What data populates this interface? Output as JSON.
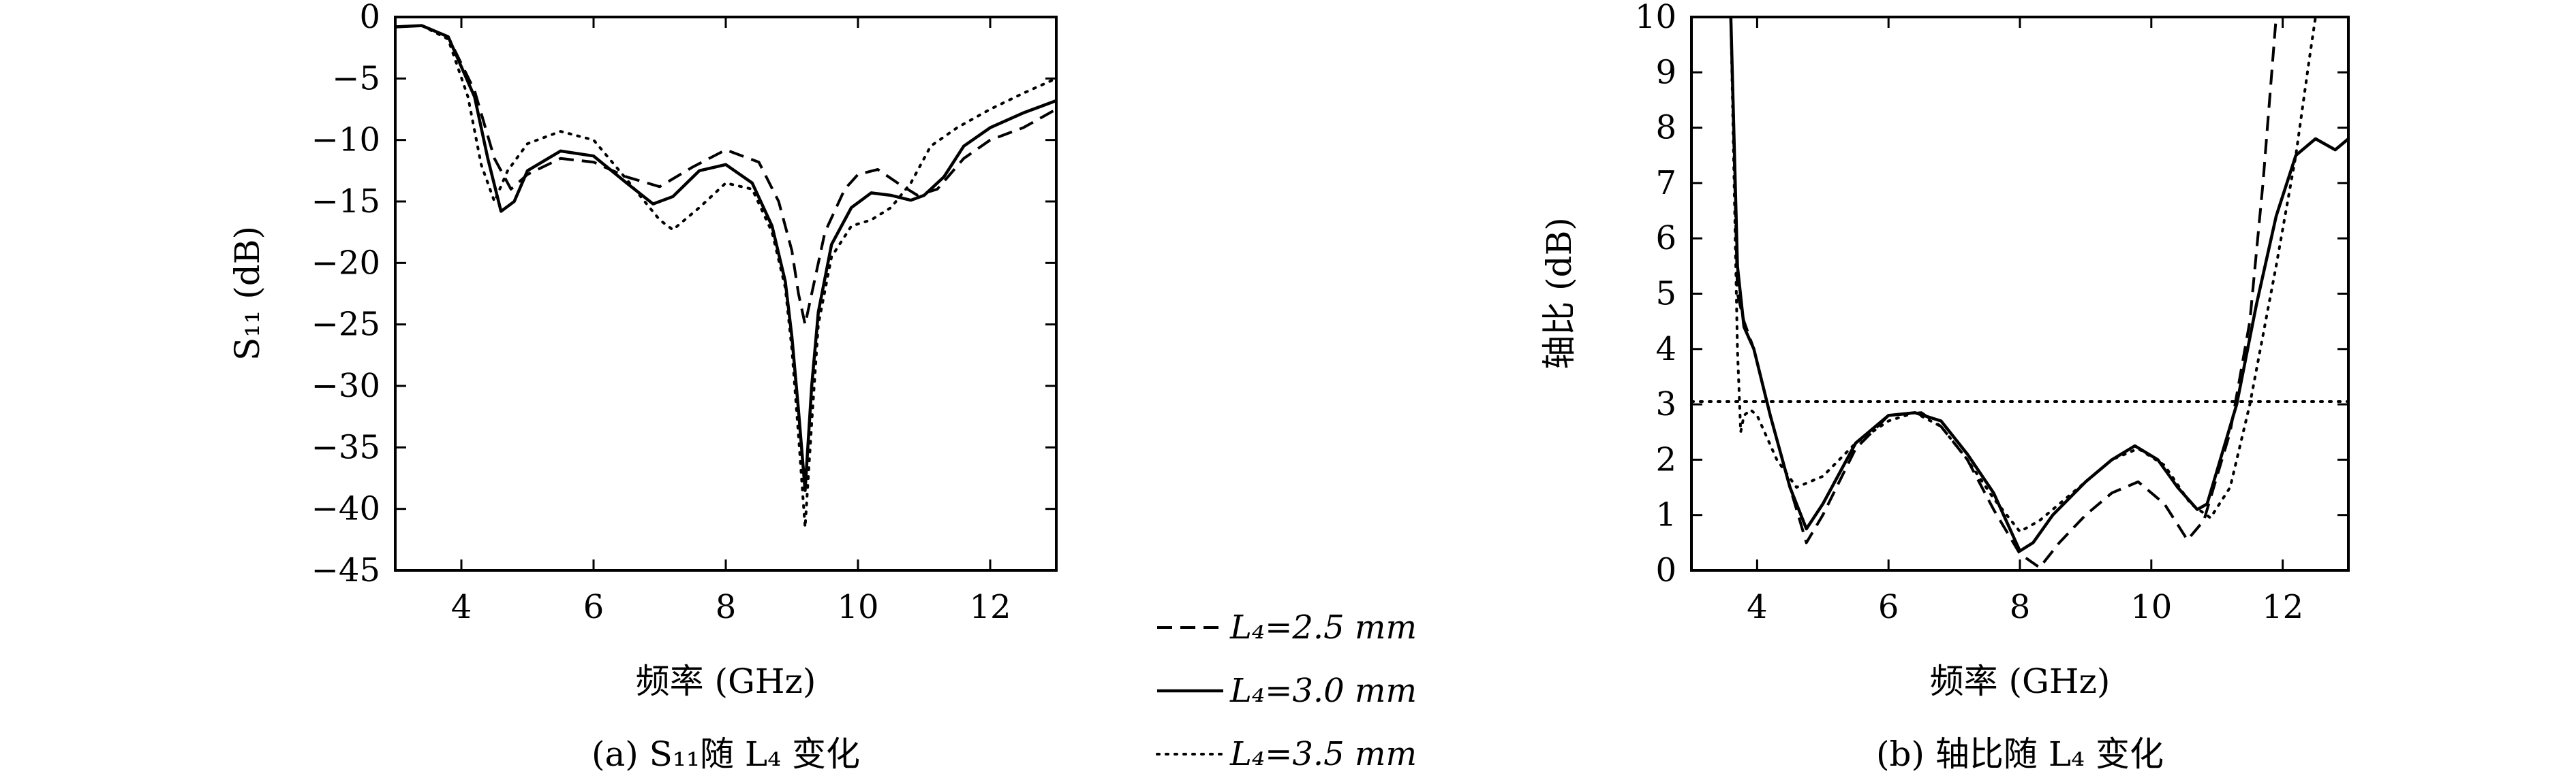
{
  "chart_data": [
    {
      "type": "line",
      "panel_caption": "(a) S₁₁随 L₄ 变化",
      "xlabel": "频率 (GHz)",
      "ylabel": "S₁₁ (dB)",
      "xlim": [
        3,
        13
      ],
      "ylim": [
        -45,
        0
      ],
      "xticks": [
        4,
        6,
        8,
        10,
        12
      ],
      "yticks": [
        0,
        -5,
        -10,
        -15,
        -20,
        -25,
        -30,
        -35,
        -40,
        -45
      ],
      "yticklabels": [
        "0",
        "−5",
        "−10",
        "−15",
        "−20",
        "−25",
        "−30",
        "−35",
        "−40",
        "−45"
      ],
      "grid": false,
      "series": [
        {
          "name": "L₄=2.5 mm",
          "style": "dashed",
          "x": [
            3.0,
            3.4,
            3.8,
            4.2,
            4.5,
            4.75,
            5.0,
            5.5,
            6.0,
            6.5,
            7.0,
            7.5,
            8.0,
            8.5,
            8.8,
            9.0,
            9.1,
            9.2,
            9.3,
            9.5,
            9.8,
            10.0,
            10.3,
            10.6,
            10.9,
            11.2,
            11.6,
            12.0,
            12.5,
            13.0
          ],
          "y": [
            -0.8,
            -0.7,
            -1.6,
            -6.0,
            -11.5,
            -14.0,
            -12.8,
            -11.5,
            -11.8,
            -13.0,
            -13.8,
            -12.2,
            -10.8,
            -11.8,
            -15.0,
            -19.0,
            -22.5,
            -25.0,
            -22.5,
            -17.5,
            -14.0,
            -12.8,
            -12.4,
            -13.5,
            -14.5,
            -14.0,
            -11.5,
            -10.0,
            -9.0,
            -7.5
          ]
        },
        {
          "name": "L₄=3.0 mm",
          "style": "solid",
          "x": [
            3.0,
            3.4,
            3.8,
            4.2,
            4.4,
            4.6,
            4.8,
            5.0,
            5.5,
            6.0,
            6.5,
            6.9,
            7.2,
            7.6,
            8.0,
            8.4,
            8.7,
            8.9,
            9.0,
            9.1,
            9.2,
            9.3,
            9.4,
            9.6,
            9.9,
            10.2,
            10.5,
            10.8,
            11.0,
            11.3,
            11.6,
            12.0,
            12.5,
            13.0
          ],
          "y": [
            -0.8,
            -0.7,
            -1.6,
            -6.5,
            -11.5,
            -15.8,
            -15.0,
            -12.5,
            -10.9,
            -11.3,
            -13.5,
            -15.2,
            -14.6,
            -12.5,
            -12.0,
            -13.5,
            -17.0,
            -21.5,
            -26.0,
            -32.0,
            -38.5,
            -30.0,
            -24.0,
            -18.5,
            -15.5,
            -14.3,
            -14.5,
            -14.9,
            -14.5,
            -13.0,
            -10.5,
            -9.0,
            -7.8,
            -6.8
          ]
        },
        {
          "name": "L₄=3.5 mm",
          "style": "dotted",
          "x": [
            3.0,
            3.4,
            3.8,
            4.1,
            4.3,
            4.5,
            4.7,
            5.0,
            5.5,
            6.0,
            6.5,
            7.0,
            7.2,
            7.6,
            8.0,
            8.4,
            8.7,
            8.9,
            9.0,
            9.1,
            9.2,
            9.3,
            9.4,
            9.6,
            9.9,
            10.2,
            10.5,
            10.8,
            11.1,
            11.5,
            12.0,
            12.5,
            13.0
          ],
          "y": [
            -0.8,
            -0.7,
            -1.8,
            -6.5,
            -12.0,
            -15.0,
            -12.5,
            -10.3,
            -9.3,
            -10.0,
            -13.2,
            -16.5,
            -17.3,
            -15.5,
            -13.5,
            -14.0,
            -17.5,
            -22.0,
            -27.0,
            -34.0,
            -41.5,
            -33.0,
            -25.0,
            -19.5,
            -17.0,
            -16.5,
            -15.5,
            -13.5,
            -10.5,
            -9.0,
            -7.5,
            -6.2,
            -5.0
          ]
        }
      ]
    },
    {
      "type": "line",
      "panel_caption": "(b) 轴比随 L₄ 变化",
      "xlabel": "频率 (GHz)",
      "ylabel": "轴比 (dB)",
      "xlim": [
        3,
        13
      ],
      "ylim": [
        0,
        10
      ],
      "xticks": [
        4,
        6,
        8,
        10,
        12
      ],
      "yticks": [
        0,
        1,
        2,
        3,
        4,
        5,
        6,
        7,
        8,
        9,
        10
      ],
      "yticklabels": [
        "0",
        "1",
        "2",
        "3",
        "4",
        "5",
        "6",
        "7",
        "8",
        "9",
        "10"
      ],
      "grid": false,
      "reference_line": 3,
      "series": [
        {
          "name": "L₄=2.5 mm",
          "style": "dashed",
          "x": [
            3.6,
            3.7,
            3.8,
            3.95,
            4.2,
            4.5,
            4.75,
            5.0,
            5.5,
            6.0,
            6.5,
            6.8,
            7.2,
            7.6,
            8.0,
            8.3,
            8.6,
            9.0,
            9.4,
            9.8,
            10.2,
            10.55,
            10.8,
            11.2,
            11.5,
            11.7,
            11.9
          ],
          "y": [
            10.0,
            5.0,
            4.5,
            4.0,
            2.8,
            1.5,
            0.5,
            1.0,
            2.2,
            2.8,
            2.85,
            2.6,
            2.0,
            1.1,
            0.3,
            0.05,
            0.5,
            1.0,
            1.4,
            1.6,
            1.2,
            0.55,
            0.9,
            2.5,
            4.5,
            7.0,
            10.0
          ]
        },
        {
          "name": "L₄=3.0 mm",
          "style": "solid",
          "x": [
            3.6,
            3.7,
            3.8,
            3.95,
            4.2,
            4.5,
            4.75,
            5.0,
            5.5,
            6.0,
            6.4,
            6.8,
            7.2,
            7.6,
            8.0,
            8.2,
            8.5,
            9.0,
            9.4,
            9.75,
            10.1,
            10.4,
            10.7,
            10.85,
            11.0,
            11.3,
            11.6,
            11.9,
            12.2,
            12.5,
            12.8,
            13.0
          ],
          "y": [
            10.0,
            5.5,
            4.4,
            4.0,
            2.8,
            1.5,
            0.75,
            1.2,
            2.3,
            2.8,
            2.85,
            2.7,
            2.1,
            1.4,
            0.35,
            0.5,
            1.0,
            1.6,
            2.0,
            2.25,
            2.0,
            1.5,
            1.1,
            1.2,
            1.8,
            3.0,
            4.8,
            6.4,
            7.5,
            7.8,
            7.6,
            7.8
          ]
        },
        {
          "name": "L₄=3.5 mm",
          "style": "dotted",
          "x": [
            3.6,
            3.65,
            3.7,
            3.75,
            3.8,
            3.9,
            4.0,
            4.3,
            4.6,
            5.0,
            5.5,
            6.0,
            6.4,
            6.8,
            7.2,
            7.6,
            8.0,
            8.3,
            8.6,
            9.0,
            9.4,
            9.8,
            10.2,
            10.6,
            10.9,
            11.2,
            11.5,
            11.9,
            12.2,
            12.4,
            12.5
          ],
          "y": [
            10.0,
            7.0,
            4.0,
            2.5,
            2.8,
            2.9,
            2.8,
            2.0,
            1.5,
            1.7,
            2.3,
            2.7,
            2.85,
            2.6,
            2.0,
            1.3,
            0.7,
            0.9,
            1.2,
            1.6,
            2.0,
            2.2,
            1.9,
            1.2,
            0.95,
            1.5,
            3.0,
            5.5,
            7.5,
            9.2,
            10.0
          ]
        }
      ]
    }
  ],
  "legend": {
    "placement": "bottom-center",
    "entries": [
      {
        "label": "L₄=2.5 mm",
        "style": "dashed"
      },
      {
        "label": "L₄=3.0 mm",
        "style": "solid"
      },
      {
        "label": "L₄=3.5 mm",
        "style": "dotted"
      }
    ]
  }
}
